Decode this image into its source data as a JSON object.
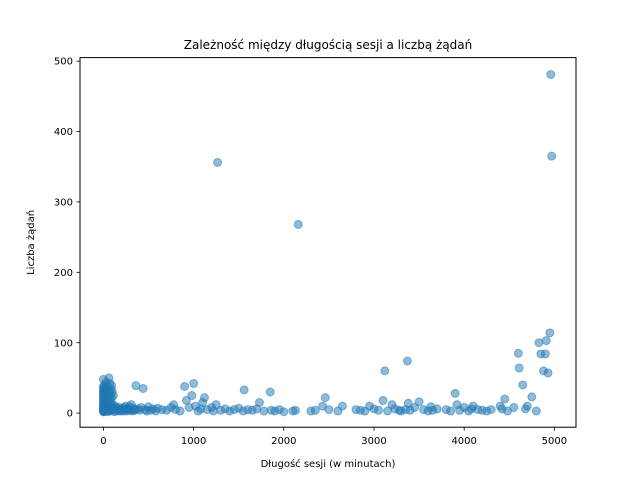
{
  "chart_data": {
    "type": "scatter",
    "title": "Zależność między długością sesji a liczbą żądań",
    "xlabel": "Długość sesji (w minutach)",
    "ylabel": "Liczba żądań",
    "xlim": [
      -260,
      5240
    ],
    "ylim": [
      -20,
      505
    ],
    "xticks": [
      0,
      1000,
      2000,
      3000,
      4000,
      5000
    ],
    "yticks": [
      0,
      100,
      200,
      300,
      400,
      500
    ],
    "grid": false,
    "legend": "none",
    "color": "#1f77b4",
    "opacity": 0.5,
    "points": [
      [
        0,
        2
      ],
      [
        0,
        3
      ],
      [
        0,
        5
      ],
      [
        0,
        7
      ],
      [
        0,
        10
      ],
      [
        0,
        12
      ],
      [
        0,
        15
      ],
      [
        0,
        18
      ],
      [
        0,
        20
      ],
      [
        0,
        22
      ],
      [
        0,
        25
      ],
      [
        0,
        28
      ],
      [
        0,
        30
      ],
      [
        0,
        33
      ],
      [
        0,
        35
      ],
      [
        0,
        38
      ],
      [
        0,
        48
      ],
      [
        2,
        4
      ],
      [
        3,
        8
      ],
      [
        4,
        14
      ],
      [
        5,
        2
      ],
      [
        6,
        24
      ],
      [
        8,
        31
      ],
      [
        10,
        6
      ],
      [
        12,
        19
      ],
      [
        14,
        40
      ],
      [
        15,
        11
      ],
      [
        18,
        27
      ],
      [
        20,
        3
      ],
      [
        22,
        36
      ],
      [
        25,
        15
      ],
      [
        28,
        9
      ],
      [
        30,
        44
      ],
      [
        32,
        21
      ],
      [
        35,
        5
      ],
      [
        38,
        33
      ],
      [
        40,
        13
      ],
      [
        42,
        28
      ],
      [
        45,
        2
      ],
      [
        48,
        17
      ],
      [
        50,
        38
      ],
      [
        52,
        7
      ],
      [
        55,
        24
      ],
      [
        58,
        4
      ],
      [
        60,
        50
      ],
      [
        62,
        11
      ],
      [
        65,
        30
      ],
      [
        68,
        6
      ],
      [
        70,
        19
      ],
      [
        72,
        42
      ],
      [
        75,
        3
      ],
      [
        78,
        26
      ],
      [
        80,
        9
      ],
      [
        82,
        34
      ],
      [
        85,
        14
      ],
      [
        88,
        5
      ],
      [
        90,
        22
      ],
      [
        92,
        39
      ],
      [
        95,
        8
      ],
      [
        98,
        31
      ],
      [
        100,
        4
      ],
      [
        105,
        12
      ],
      [
        110,
        25
      ],
      [
        115,
        6
      ],
      [
        120,
        2
      ],
      [
        130,
        10
      ],
      [
        140,
        4
      ],
      [
        150,
        7
      ],
      [
        160,
        3
      ],
      [
        170,
        5
      ],
      [
        180,
        8
      ],
      [
        190,
        3
      ],
      [
        200,
        4
      ],
      [
        210,
        6
      ],
      [
        220,
        3
      ],
      [
        230,
        8
      ],
      [
        240,
        5
      ],
      [
        250,
        10
      ],
      [
        260,
        3
      ],
      [
        270,
        6
      ],
      [
        280,
        4
      ],
      [
        290,
        9
      ],
      [
        300,
        5
      ],
      [
        310,
        12
      ],
      [
        320,
        3
      ],
      [
        330,
        7
      ],
      [
        340,
        4
      ],
      [
        350,
        5
      ],
      [
        360,
        39
      ],
      [
        380,
        6
      ],
      [
        400,
        4
      ],
      [
        420,
        8
      ],
      [
        440,
        35
      ],
      [
        460,
        5
      ],
      [
        480,
        3
      ],
      [
        500,
        9
      ],
      [
        520,
        4
      ],
      [
        550,
        6
      ],
      [
        580,
        3
      ],
      [
        600,
        7
      ],
      [
        650,
        5
      ],
      [
        700,
        4
      ],
      [
        750,
        8
      ],
      [
        780,
        12
      ],
      [
        800,
        5
      ],
      [
        850,
        3
      ],
      [
        900,
        38
      ],
      [
        920,
        18
      ],
      [
        950,
        8
      ],
      [
        980,
        25
      ],
      [
        1000,
        42
      ],
      [
        1020,
        10
      ],
      [
        1050,
        3
      ],
      [
        1080,
        6
      ],
      [
        1100,
        15
      ],
      [
        1120,
        22
      ],
      [
        1150,
        5
      ],
      [
        1200,
        8
      ],
      [
        1220,
        3
      ],
      [
        1250,
        12
      ],
      [
        1265,
        356
      ],
      [
        1300,
        4
      ],
      [
        1350,
        6
      ],
      [
        1400,
        3
      ],
      [
        1450,
        5
      ],
      [
        1500,
        7
      ],
      [
        1550,
        3
      ],
      [
        1560,
        33
      ],
      [
        1600,
        5
      ],
      [
        1650,
        4
      ],
      [
        1700,
        6
      ],
      [
        1730,
        15
      ],
      [
        1780,
        3
      ],
      [
        1850,
        30
      ],
      [
        1860,
        4
      ],
      [
        1900,
        3
      ],
      [
        1950,
        5
      ],
      [
        2000,
        2
      ],
      [
        2100,
        3
      ],
      [
        2130,
        4
      ],
      [
        2160,
        268
      ],
      [
        2300,
        3
      ],
      [
        2350,
        4
      ],
      [
        2430,
        10
      ],
      [
        2460,
        22
      ],
      [
        2500,
        5
      ],
      [
        2600,
        3
      ],
      [
        2650,
        10
      ],
      [
        2800,
        5
      ],
      [
        2850,
        4
      ],
      [
        2900,
        3
      ],
      [
        2950,
        10
      ],
      [
        3000,
        6
      ],
      [
        3050,
        4
      ],
      [
        3100,
        18
      ],
      [
        3120,
        60
      ],
      [
        3150,
        3
      ],
      [
        3200,
        12
      ],
      [
        3230,
        6
      ],
      [
        3280,
        4
      ],
      [
        3300,
        3
      ],
      [
        3350,
        5
      ],
      [
        3370,
        74
      ],
      [
        3380,
        14
      ],
      [
        3400,
        4
      ],
      [
        3450,
        8
      ],
      [
        3500,
        16
      ],
      [
        3550,
        5
      ],
      [
        3600,
        3
      ],
      [
        3630,
        9
      ],
      [
        3650,
        4
      ],
      [
        3700,
        6
      ],
      [
        3800,
        5
      ],
      [
        3850,
        3
      ],
      [
        3900,
        28
      ],
      [
        3920,
        12
      ],
      [
        3950,
        4
      ],
      [
        4000,
        8
      ],
      [
        4050,
        3
      ],
      [
        4080,
        6
      ],
      [
        4100,
        10
      ],
      [
        4150,
        5
      ],
      [
        4200,
        4
      ],
      [
        4250,
        3
      ],
      [
        4300,
        5
      ],
      [
        4400,
        10
      ],
      [
        4420,
        6
      ],
      [
        4450,
        20
      ],
      [
        4480,
        3
      ],
      [
        4550,
        8
      ],
      [
        4600,
        85
      ],
      [
        4610,
        64
      ],
      [
        4650,
        40
      ],
      [
        4680,
        6
      ],
      [
        4700,
        10
      ],
      [
        4750,
        23
      ],
      [
        4800,
        3
      ],
      [
        4830,
        100
      ],
      [
        4850,
        84
      ],
      [
        4880,
        60
      ],
      [
        4900,
        84
      ],
      [
        4910,
        103
      ],
      [
        4930,
        57
      ],
      [
        4950,
        114
      ],
      [
        4960,
        481
      ],
      [
        4970,
        365
      ]
    ]
  }
}
